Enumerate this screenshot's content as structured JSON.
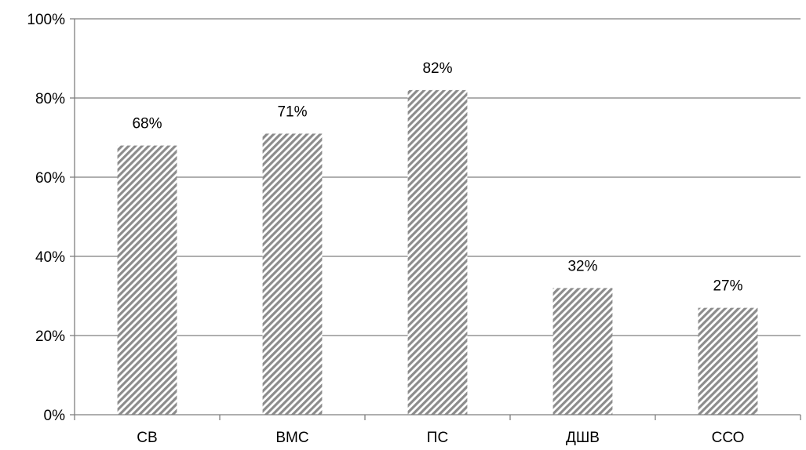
{
  "chart_data": {
    "type": "bar",
    "categories": [
      "СВ",
      "ВМС",
      "ПС",
      "ДШВ",
      "ССО"
    ],
    "values": [
      68,
      71,
      82,
      32,
      27
    ],
    "value_labels": [
      "68%",
      "71%",
      "82%",
      "32%",
      "27%"
    ],
    "title": "",
    "xlabel": "",
    "ylabel": "",
    "ylim": [
      0,
      100
    ],
    "yticks": [
      0,
      20,
      40,
      60,
      80,
      100
    ],
    "ytick_labels": [
      "0%",
      "20%",
      "40%",
      "60%",
      "80%",
      "100%"
    ],
    "grid": true,
    "legend": "none",
    "colors": {
      "bar_pattern_stripe": "#8c8c8c",
      "bar_pattern_background": "#ffffff",
      "axis": "#7f7f7f",
      "gridline": "#7f7f7f",
      "text": "#000000"
    }
  }
}
